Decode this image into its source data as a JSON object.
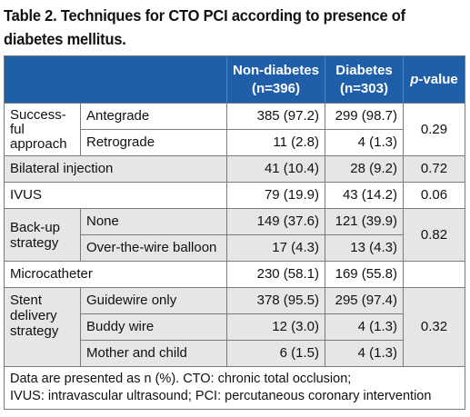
{
  "title": "Table 2. Techniques for CTO PCI according to presence of diabetes mellitus.",
  "headers": {
    "blank": "",
    "non_diabetes": "Non-diabetes (n=396)",
    "diabetes": "Diabetes (n=303)",
    "p_value_italic": "p",
    "p_value_rest": "-value"
  },
  "rows": {
    "successful_approach": {
      "label": "Success- ful approach",
      "antegrade": {
        "label": "Antegrade",
        "non_diabetes": "385 (97.2)",
        "diabetes": "299 (98.7)"
      },
      "retrograde": {
        "label": "Retrograde",
        "non_diabetes": "11 (2.8)",
        "diabetes": "4 (1.3)"
      },
      "p_value": "0.29"
    },
    "bilateral_injection": {
      "label": "Bilateral injection",
      "non_diabetes": "41 (10.4)",
      "diabetes": "28 (9.2)",
      "p_value": "0.72"
    },
    "ivus": {
      "label": "IVUS",
      "non_diabetes": "79 (19.9)",
      "diabetes": "43 (14.2)",
      "p_value": "0.06"
    },
    "backup_strategy": {
      "label": "Back-up strategy",
      "none": {
        "label": "None",
        "non_diabetes": "149 (37.6)",
        "diabetes": "121 (39.9)"
      },
      "otw_balloon": {
        "label": "Over-the-wire balloon",
        "non_diabetes": "17 (4.3)",
        "diabetes": "13 (4.3)"
      },
      "p_value": "0.82"
    },
    "microcatheter": {
      "label": "Microcatheter",
      "non_diabetes": "230 (58.1)",
      "diabetes": "169 (55.8)",
      "p_value": ""
    },
    "stent_delivery": {
      "label": "Stent delivery strategy",
      "guidewire_only": {
        "label": "Guidewire only",
        "non_diabetes": "378 (95.5)",
        "diabetes": "295 (97.4)"
      },
      "buddy_wire": {
        "label": "Buddy wire",
        "non_diabetes": "12 (3.0)",
        "diabetes": "4 (1.3)"
      },
      "mother_child": {
        "label": "Mother and child",
        "non_diabetes": "6 (1.5)",
        "diabetes": "4 (1.3)"
      },
      "p_value": "0.32"
    }
  },
  "footnote": {
    "line1": "Data are presented as n (%). CTO: chronic total occlusion;",
    "line2": "IVUS: intravascular ultrasound; PCI: percutaneous coronary intervention"
  },
  "colors": {
    "header_bg": "#1f5faa",
    "header_text": "#ffffff",
    "grey_row": "#e6e6e6",
    "border": "#7a7a7a"
  }
}
